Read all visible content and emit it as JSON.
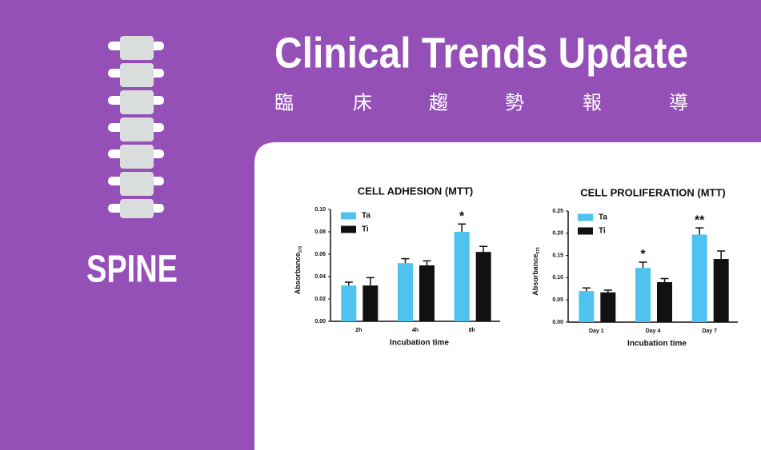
{
  "header": {
    "title": "Clinical Trends Update",
    "subtitle_chars": [
      "臨",
      "床",
      "趨",
      "勢",
      "報",
      "導"
    ],
    "section": "SPINE"
  },
  "chart_data": [
    {
      "type": "bar",
      "title": "CELL ADHESION (MTT)",
      "x_label": "Incubation time",
      "y_label": "Absorbance",
      "y_label_subscript": "570",
      "categories": [
        "2h",
        "4h",
        "8h"
      ],
      "series": [
        {
          "name": "Ta",
          "color": "#4fc3f0",
          "values": [
            0.032,
            0.052,
            0.08
          ],
          "errors": [
            0.003,
            0.004,
            0.007
          ]
        },
        {
          "name": "Ti",
          "color": "#111111",
          "values": [
            0.032,
            0.05,
            0.062
          ],
          "errors": [
            0.007,
            0.004,
            0.005
          ]
        }
      ],
      "ylim": [
        0,
        0.1
      ],
      "yticks": [
        {
          "value": 0,
          "label": "0.00"
        },
        0.02,
        0.04,
        0.06,
        0.08,
        {
          "value": 0.1,
          "label": "0.10"
        }
      ],
      "annotations": [
        {
          "text": "*",
          "x": "8h"
        }
      ]
    },
    {
      "type": "bar",
      "title": "CELL PROLIFERATION (MTT)",
      "x_label": "Incubation time",
      "y_label": "Absorbance",
      "y_label_subscript": "570",
      "categories": [
        "Day 1",
        "Day 4",
        "Day 7"
      ],
      "series": [
        {
          "name": "Ta",
          "color": "#4fc3f0",
          "values": [
            0.07,
            0.122,
            0.197
          ],
          "errors": [
            0.007,
            0.013,
            0.015
          ]
        },
        {
          "name": "Ti",
          "color": "#111111",
          "values": [
            0.067,
            0.09,
            0.142
          ],
          "errors": [
            0.005,
            0.008,
            0.018
          ]
        }
      ],
      "ylim": [
        0,
        0.25
      ],
      "yticks": [
        {
          "value": 0,
          "label": "0.00"
        },
        0.05,
        {
          "value": 0.1,
          "label": "0.10"
        },
        0.15,
        {
          "value": 0.2,
          "label": "0.20"
        },
        0.25
      ],
      "annotations": [
        {
          "text": "*",
          "x": "Day 4"
        },
        {
          "text": "**",
          "x": "Day 7"
        }
      ]
    }
  ]
}
